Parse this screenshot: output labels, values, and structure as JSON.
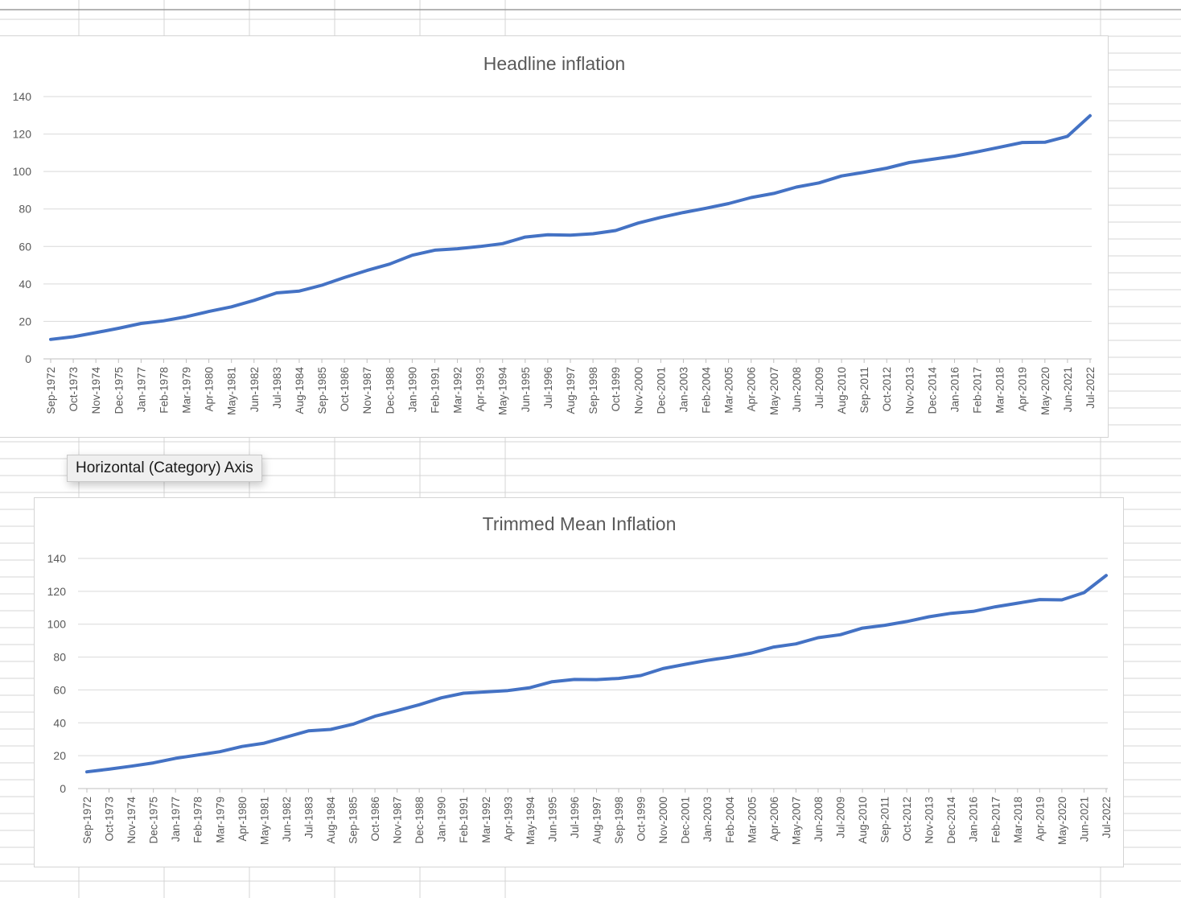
{
  "sheet": {
    "grid_color": "#d4d4d4",
    "divider_color": "#9c9c9c"
  },
  "tooltip": {
    "text": "Horizontal (Category) Axis"
  },
  "colors": {
    "line": "#4472c4",
    "gridline": "#d9d9d9",
    "axis": "#bfbfbf",
    "text": "#595959"
  },
  "x_labels": [
    "Sep-1972",
    "Oct-1973",
    "Nov-1974",
    "Dec-1975",
    "Jan-1977",
    "Feb-1978",
    "Mar-1979",
    "Apr-1980",
    "May-1981",
    "Jun-1982",
    "Jul-1983",
    "Aug-1984",
    "Sep-1985",
    "Oct-1986",
    "Nov-1987",
    "Dec-1988",
    "Jan-1990",
    "Feb-1991",
    "Mar-1992",
    "Apr-1993",
    "May-1994",
    "Jun-1995",
    "Jul-1996",
    "Aug-1997",
    "Sep-1998",
    "Oct-1999",
    "Nov-2000",
    "Dec-2001",
    "Jan-2003",
    "Feb-2004",
    "Mar-2005",
    "Apr-2006",
    "May-2007",
    "Jun-2008",
    "Jul-2009",
    "Aug-2010",
    "Sep-2011",
    "Oct-2012",
    "Nov-2013",
    "Dec-2014",
    "Jan-2016",
    "Feb-2017",
    "Mar-2018",
    "Apr-2019",
    "May-2020",
    "Jun-2021",
    "Jul-2022"
  ],
  "chart_data": [
    {
      "type": "line",
      "title": "Headline inflation",
      "xlabel": "",
      "ylabel": "",
      "ylim": [
        0,
        140
      ],
      "yticks": [
        0,
        20,
        40,
        60,
        80,
        100,
        120,
        140
      ],
      "grid": true,
      "x": [
        "Sep-1972",
        "Oct-1973",
        "Nov-1974",
        "Dec-1975",
        "Jan-1977",
        "Feb-1978",
        "Mar-1979",
        "Apr-1980",
        "May-1981",
        "Jun-1982",
        "Jul-1983",
        "Aug-1984",
        "Sep-1985",
        "Oct-1986",
        "Nov-1987",
        "Dec-1988",
        "Jan-1990",
        "Feb-1991",
        "Mar-1992",
        "Apr-1993",
        "May-1994",
        "Jun-1995",
        "Jul-1996",
        "Aug-1997",
        "Sep-1998",
        "Oct-1999",
        "Nov-2000",
        "Dec-2001",
        "Jan-2003",
        "Feb-2004",
        "Mar-2005",
        "Apr-2006",
        "May-2007",
        "Jun-2008",
        "Jul-2009",
        "Aug-2010",
        "Sep-2011",
        "Oct-2012",
        "Nov-2013",
        "Dec-2014",
        "Jan-2016",
        "Feb-2017",
        "Mar-2018",
        "Apr-2019",
        "May-2020",
        "Jun-2021",
        "Jul-2022"
      ],
      "series": [
        {
          "values": [
            10.4,
            11.8,
            14.0,
            16.3,
            18.9,
            20.3,
            22.5,
            25.3,
            27.8,
            31.2,
            35.2,
            36.2,
            39.3,
            43.4,
            47.2,
            50.6,
            55.3,
            58.0,
            58.8,
            60.0,
            61.5,
            65.0,
            66.2,
            66.0,
            66.8,
            68.5,
            72.5,
            75.5,
            78.1,
            80.4,
            82.9,
            86.1,
            88.3,
            91.7,
            93.9,
            97.6,
            99.6,
            101.8,
            104.8,
            106.5,
            108.2,
            110.5,
            113.0,
            115.5,
            115.6,
            118.8,
            129.8
          ]
        }
      ]
    },
    {
      "type": "line",
      "title": "Trimmed Mean Inflation",
      "xlabel": "",
      "ylabel": "",
      "ylim": [
        0,
        140
      ],
      "yticks": [
        0,
        20,
        40,
        60,
        80,
        100,
        120,
        140
      ],
      "grid": true,
      "x": [
        "Sep-1972",
        "Oct-1973",
        "Nov-1974",
        "Dec-1975",
        "Jan-1977",
        "Feb-1978",
        "Mar-1979",
        "Apr-1980",
        "May-1981",
        "Jun-1982",
        "Jul-1983",
        "Aug-1984",
        "Sep-1985",
        "Oct-1986",
        "Nov-1987",
        "Dec-1988",
        "Jan-1990",
        "Feb-1991",
        "Mar-1992",
        "Apr-1993",
        "May-1994",
        "Jun-1995",
        "Jul-1996",
        "Aug-1997",
        "Sep-1998",
        "Oct-1999",
        "Nov-2000",
        "Dec-2001",
        "Jan-2003",
        "Feb-2004",
        "Mar-2005",
        "Apr-2006",
        "May-2007",
        "Jun-2008",
        "Jul-2009",
        "Aug-2010",
        "Sep-2011",
        "Oct-2012",
        "Nov-2013",
        "Dec-2014",
        "Jan-2016",
        "Feb-2017",
        "Mar-2018",
        "Apr-2019",
        "May-2020",
        "Jun-2021",
        "Jul-2022"
      ],
      "series": [
        {
          "values": [
            10.2,
            11.8,
            13.6,
            15.6,
            18.4,
            20.4,
            22.4,
            25.6,
            27.6,
            31.4,
            35.1,
            36.0,
            39.1,
            44.0,
            47.4,
            51.0,
            55.2,
            58.0,
            58.8,
            59.6,
            61.4,
            65.0,
            66.4,
            66.3,
            67.0,
            68.8,
            73.0,
            75.6,
            78.0,
            80.0,
            82.5,
            86.1,
            88.0,
            91.8,
            93.6,
            97.6,
            99.3,
            101.6,
            104.5,
            106.6,
            107.8,
            110.6,
            112.8,
            115.0,
            114.8,
            119.2,
            129.6
          ]
        }
      ]
    }
  ]
}
